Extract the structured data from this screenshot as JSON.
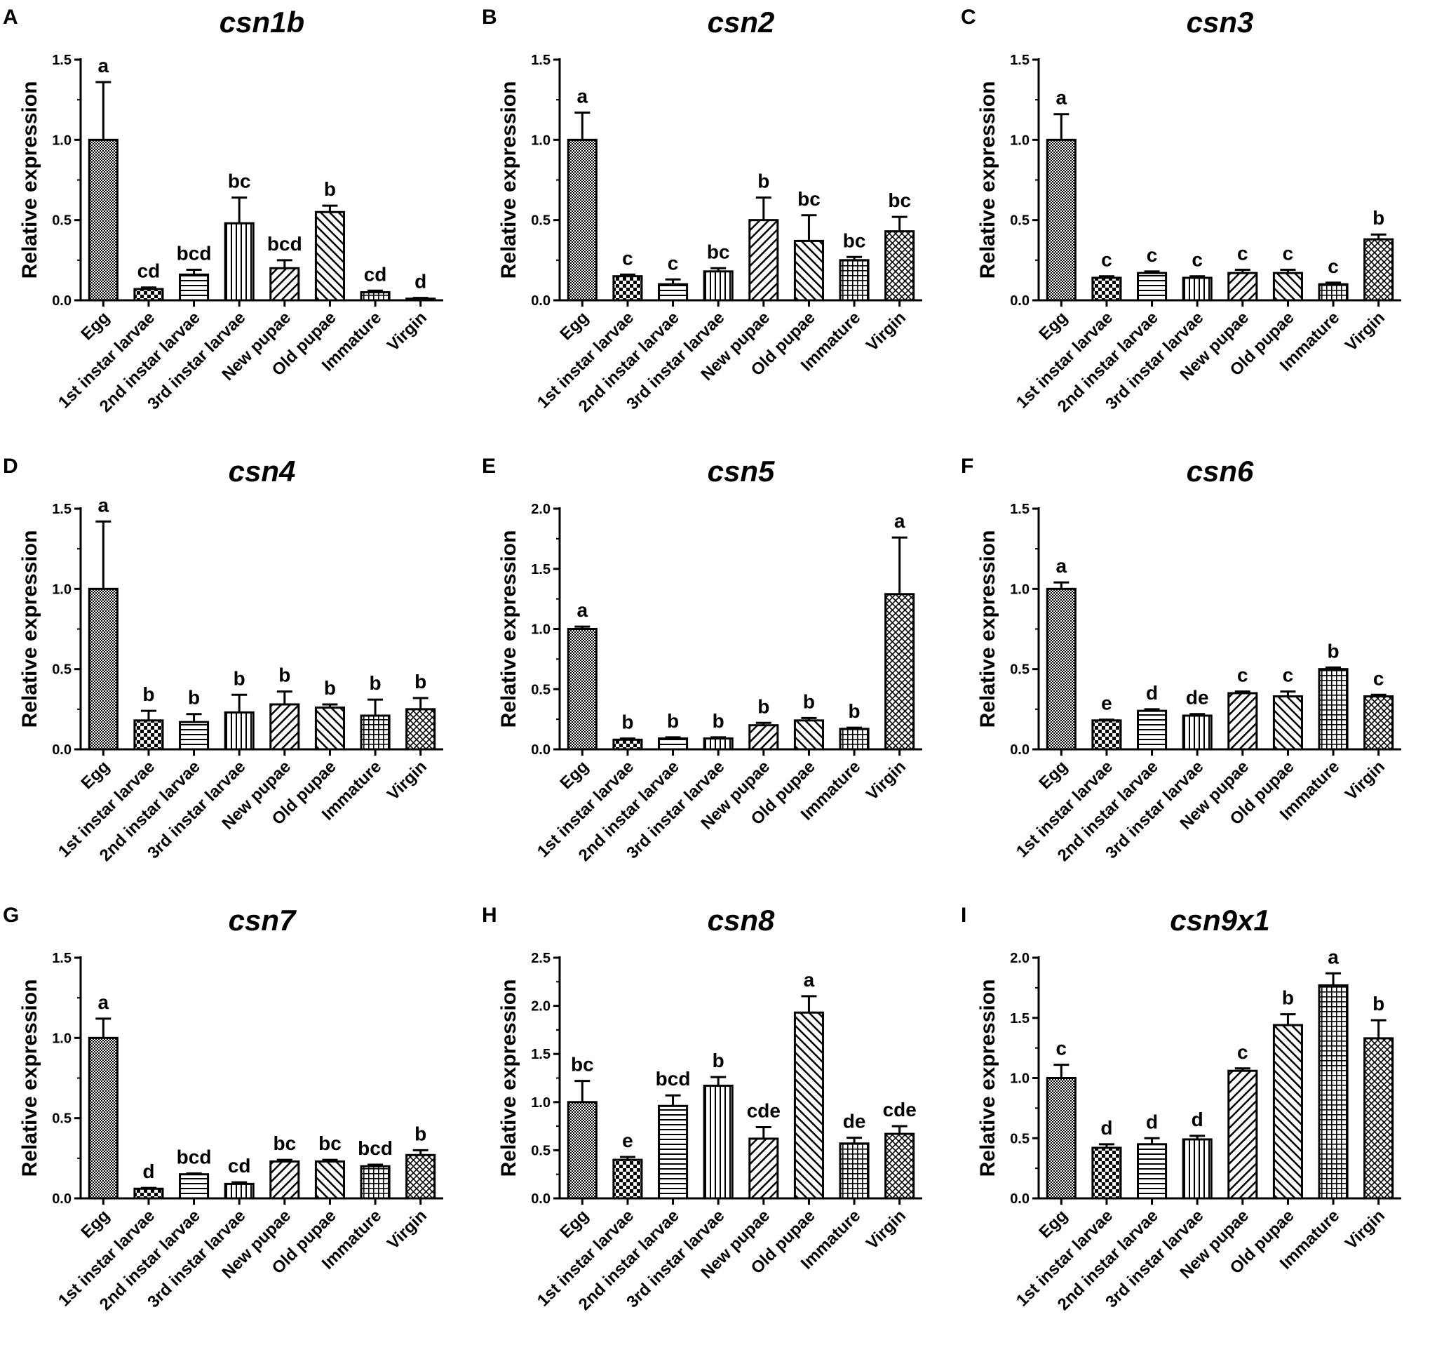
{
  "figure": {
    "y_axis_label": "Relative expression",
    "categories": [
      "Egg",
      "1st instar larvae",
      "2nd instar larvae",
      "3rd instar larvae",
      "New pupae",
      "Old pupae",
      "Immature",
      "Virgin"
    ],
    "bar_patterns": [
      "fine-dots",
      "checker",
      "h-stripes",
      "v-stripes",
      "diag-fwd",
      "diag-back",
      "grid",
      "diag-cross"
    ],
    "colors": {
      "ink": "#000000",
      "background": "#ffffff"
    }
  },
  "chart_data": [
    {
      "type": "bar",
      "panel": "A",
      "title": "csn1b",
      "ylabel": "Relative expression",
      "ylim": [
        0,
        1.5
      ],
      "yticks": [
        "0.0",
        "0.5",
        "1.0",
        "1.5"
      ],
      "categories": [
        "Egg",
        "1st instar larvae",
        "2nd instar larvae",
        "3rd instar larvae",
        "New pupae",
        "Old pupae",
        "Immature",
        "Virgin"
      ],
      "values": [
        1.0,
        0.07,
        0.16,
        0.48,
        0.2,
        0.55,
        0.05,
        0.01
      ],
      "errors": [
        0.36,
        0.01,
        0.03,
        0.16,
        0.05,
        0.04,
        0.01,
        0.005
      ],
      "labels": [
        "a",
        "cd",
        "bcd",
        "bc",
        "bcd",
        "b",
        "cd",
        "d"
      ]
    },
    {
      "type": "bar",
      "panel": "B",
      "title": "csn2",
      "ylabel": "Relative expression",
      "ylim": [
        0,
        1.5
      ],
      "yticks": [
        "0.0",
        "0.5",
        "1.0",
        "1.5"
      ],
      "categories": [
        "Egg",
        "1st instar larvae",
        "2nd instar larvae",
        "3rd instar larvae",
        "New pupae",
        "Old pupae",
        "Immature",
        "Virgin"
      ],
      "values": [
        1.0,
        0.15,
        0.1,
        0.18,
        0.5,
        0.37,
        0.25,
        0.43
      ],
      "errors": [
        0.17,
        0.01,
        0.03,
        0.02,
        0.14,
        0.16,
        0.02,
        0.09
      ],
      "labels": [
        "a",
        "c",
        "c",
        "bc",
        "b",
        "bc",
        "bc",
        "bc"
      ]
    },
    {
      "type": "bar",
      "panel": "C",
      "title": "csn3",
      "ylabel": "Relative expression",
      "ylim": [
        0,
        1.5
      ],
      "yticks": [
        "0.0",
        "0.5",
        "1.0",
        "1.5"
      ],
      "categories": [
        "Egg",
        "1st instar larvae",
        "2nd instar larvae",
        "3rd instar larvae",
        "New pupae",
        "Old pupae",
        "Immature",
        "Virgin"
      ],
      "values": [
        1.0,
        0.14,
        0.17,
        0.14,
        0.17,
        0.17,
        0.1,
        0.38
      ],
      "errors": [
        0.16,
        0.01,
        0.01,
        0.01,
        0.02,
        0.02,
        0.01,
        0.03
      ],
      "labels": [
        "a",
        "c",
        "c",
        "c",
        "c",
        "c",
        "c",
        "b"
      ]
    },
    {
      "type": "bar",
      "panel": "D",
      "title": "csn4",
      "ylabel": "Relative expression",
      "ylim": [
        0,
        1.5
      ],
      "yticks": [
        "0.0",
        "0.5",
        "1.0",
        "1.5"
      ],
      "categories": [
        "Egg",
        "1st instar larvae",
        "2nd instar larvae",
        "3rd instar larvae",
        "New pupae",
        "Old pupae",
        "Immature",
        "Virgin"
      ],
      "values": [
        1.0,
        0.18,
        0.17,
        0.23,
        0.28,
        0.26,
        0.21,
        0.25
      ],
      "errors": [
        0.42,
        0.06,
        0.05,
        0.11,
        0.08,
        0.02,
        0.1,
        0.07
      ],
      "labels": [
        "a",
        "b",
        "b",
        "b",
        "b",
        "b",
        "b",
        "b"
      ]
    },
    {
      "type": "bar",
      "panel": "E",
      "title": "csn5",
      "ylabel": "Relative expression",
      "ylim": [
        0,
        2.0
      ],
      "yticks": [
        "0.0",
        "0.5",
        "1.0",
        "1.5",
        "2.0"
      ],
      "categories": [
        "Egg",
        "1st instar larvae",
        "2nd instar larvae",
        "3rd instar larvae",
        "New pupae",
        "Old pupae",
        "Immature",
        "Virgin"
      ],
      "values": [
        1.0,
        0.08,
        0.09,
        0.09,
        0.2,
        0.24,
        0.17,
        1.29
      ],
      "errors": [
        0.02,
        0.01,
        0.01,
        0.01,
        0.02,
        0.02,
        0.01,
        0.47
      ],
      "labels": [
        "a",
        "b",
        "b",
        "b",
        "b",
        "b",
        "b",
        "a"
      ]
    },
    {
      "type": "bar",
      "panel": "F",
      "title": "csn6",
      "ylabel": "Relative expression",
      "ylim": [
        0,
        1.5
      ],
      "yticks": [
        "0.0",
        "0.5",
        "1.0",
        "1.5"
      ],
      "categories": [
        "Egg",
        "1st instar larvae",
        "2nd instar larvae",
        "3rd instar larvae",
        "New pupae",
        "Old pupae",
        "Immature",
        "Virgin"
      ],
      "values": [
        1.0,
        0.18,
        0.24,
        0.21,
        0.35,
        0.33,
        0.5,
        0.33
      ],
      "errors": [
        0.04,
        0.005,
        0.01,
        0.01,
        0.01,
        0.03,
        0.01,
        0.01
      ],
      "labels": [
        "a",
        "e",
        "d",
        "de",
        "c",
        "c",
        "b",
        "c"
      ]
    },
    {
      "type": "bar",
      "panel": "G",
      "title": "csn7",
      "ylabel": "Relative expression",
      "ylim": [
        0,
        1.5
      ],
      "yticks": [
        "0.0",
        "0.5",
        "1.0",
        "1.5"
      ],
      "categories": [
        "Egg",
        "1st instar larvae",
        "2nd instar larvae",
        "3rd instar larvae",
        "New pupae",
        "Old pupae",
        "Immature",
        "Virgin"
      ],
      "values": [
        1.0,
        0.06,
        0.15,
        0.09,
        0.23,
        0.23,
        0.2,
        0.27
      ],
      "errors": [
        0.12,
        0.005,
        0.005,
        0.01,
        0.01,
        0.01,
        0.01,
        0.03
      ],
      "labels": [
        "a",
        "d",
        "bcd",
        "cd",
        "bc",
        "bc",
        "bcd",
        "b"
      ]
    },
    {
      "type": "bar",
      "panel": "H",
      "title": "csn8",
      "ylabel": "Relative expression",
      "ylim": [
        0,
        2.5
      ],
      "yticks": [
        "0.0",
        "0.5",
        "1.0",
        "1.5",
        "2.0",
        "2.5"
      ],
      "categories": [
        "Egg",
        "1st instar larvae",
        "2nd instar larvae",
        "3rd instar larvae",
        "New pupae",
        "Old pupae",
        "Immature",
        "Virgin"
      ],
      "values": [
        1.0,
        0.4,
        0.96,
        1.17,
        0.62,
        1.93,
        0.57,
        0.67
      ],
      "errors": [
        0.22,
        0.03,
        0.11,
        0.09,
        0.12,
        0.17,
        0.06,
        0.08
      ],
      "labels": [
        "bc",
        "e",
        "bcd",
        "b",
        "cde",
        "a",
        "de",
        "cde"
      ]
    },
    {
      "type": "bar",
      "panel": "I",
      "title": "csn9x1",
      "ylabel": "Relative expression",
      "ylim": [
        0,
        2.0
      ],
      "yticks": [
        "0.0",
        "0.5",
        "1.0",
        "1.5",
        "2.0"
      ],
      "categories": [
        "Egg",
        "1st instar larvae",
        "2nd instar larvae",
        "3rd instar larvae",
        "New pupae",
        "Old pupae",
        "Immature",
        "Virgin"
      ],
      "values": [
        1.0,
        0.42,
        0.45,
        0.49,
        1.06,
        1.44,
        1.77,
        1.33
      ],
      "errors": [
        0.11,
        0.03,
        0.05,
        0.03,
        0.02,
        0.09,
        0.1,
        0.15
      ],
      "labels": [
        "c",
        "d",
        "d",
        "d",
        "c",
        "b",
        "a",
        "b"
      ]
    }
  ]
}
